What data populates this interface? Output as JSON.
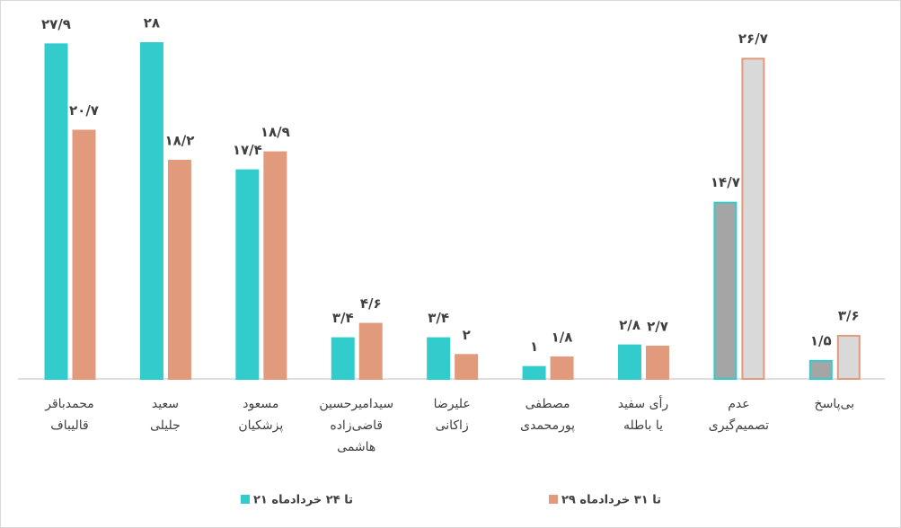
{
  "chart_data": {
    "type": "bar",
    "categories": [
      [
        "محمدباقر",
        "قالیباف"
      ],
      [
        "سعید",
        "جلیلی"
      ],
      [
        "مسعود",
        "پزشکیان"
      ],
      [
        "سیدامیرحسین",
        "قاضی‌زاده",
        "هاشمی"
      ],
      [
        "علیرضا",
        "زاکانی"
      ],
      [
        "مصطفی",
        "پورمحمدی"
      ],
      [
        "رأی سفید",
        "یا باطله"
      ],
      [
        "عدم",
        "تصمیم‌گیری"
      ],
      [
        "بی‌پاسخ"
      ]
    ],
    "series": [
      {
        "name": "۲۱ تا ۲۴ خردادماه",
        "color": "#33cccc",
        "colors": [
          "#33cccc",
          "#33cccc",
          "#33cccc",
          "#33cccc",
          "#33cccc",
          "#33cccc",
          "#33cccc",
          "#a5a5a5",
          "#a5a5a5"
        ],
        "edge_colors": [
          "#33cccc",
          "#33cccc",
          "#33cccc",
          "#33cccc",
          "#33cccc",
          "#33cccc",
          "#33cccc",
          "#33cccc",
          "#33cccc"
        ],
        "values": [
          27.9,
          28,
          17.4,
          3.4,
          3.4,
          1,
          2.8,
          14.7,
          1.5
        ],
        "value_labels": [
          "۲۷/۹",
          "۲۸",
          "۱۷/۴",
          "۳/۴",
          "۳/۴",
          "۱",
          "۲/۸",
          "۱۴/۷",
          "۱/۵"
        ]
      },
      {
        "name": "۲۹ تا ۳۱ خردادماه",
        "color": "#e29a7c",
        "colors": [
          "#e29a7c",
          "#e29a7c",
          "#e29a7c",
          "#e29a7c",
          "#e29a7c",
          "#e29a7c",
          "#e29a7c",
          "#d9d9d9",
          "#d9d9d9"
        ],
        "edge_colors": [
          "#e29a7c",
          "#e29a7c",
          "#e29a7c",
          "#e29a7c",
          "#e29a7c",
          "#e29a7c",
          "#e29a7c",
          "#e29a7c",
          "#e29a7c"
        ],
        "values": [
          20.7,
          18.2,
          18.9,
          4.6,
          2,
          1.8,
          2.7,
          26.7,
          3.6
        ],
        "value_labels": [
          "۲۰/۷",
          "۱۸/۲",
          "۱۸/۹",
          "۴/۶",
          "۲",
          "۱/۸",
          "۲/۷",
          "۲۶/۷",
          "۳/۶"
        ]
      }
    ],
    "ylim": [
      0,
      28
    ]
  }
}
